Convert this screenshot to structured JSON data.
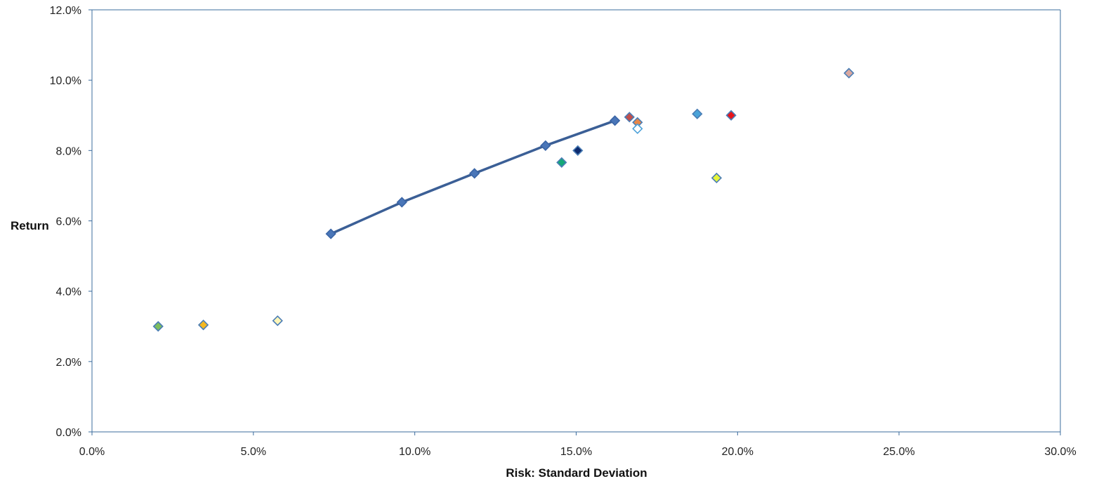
{
  "chart_data": {
    "type": "scatter",
    "title": "",
    "xlabel": "Risk: Standard Deviation",
    "ylabel": "Return",
    "xlim": [
      0,
      30
    ],
    "ylim": [
      0,
      12
    ],
    "x_ticks": [
      "0.0%",
      "5.0%",
      "10.0%",
      "15.0%",
      "20.0%",
      "25.0%",
      "30.0%"
    ],
    "y_ticks": [
      "0.0%",
      "2.0%",
      "4.0%",
      "6.0%",
      "8.0%",
      "10.0%",
      "12.0%"
    ],
    "grid": false,
    "legend": "none",
    "line_series": {
      "color": "#3b5f96",
      "marker_color": "#4a76b8",
      "points": [
        {
          "x": 7.4,
          "y": 5.63
        },
        {
          "x": 9.6,
          "y": 6.53
        },
        {
          "x": 11.85,
          "y": 7.35
        },
        {
          "x": 14.05,
          "y": 8.14
        },
        {
          "x": 16.2,
          "y": 8.85
        }
      ]
    },
    "scatter_points": [
      {
        "x": 2.05,
        "y": 3.0,
        "fill": "#7dbd5f",
        "stroke": "#4a7db5"
      },
      {
        "x": 3.45,
        "y": 3.04,
        "fill": "#f5b820",
        "stroke": "#4a7db5"
      },
      {
        "x": 5.75,
        "y": 3.16,
        "fill": "#fff6b8",
        "stroke": "#4a7db5"
      },
      {
        "x": 14.55,
        "y": 7.66,
        "fill": "#14a878",
        "stroke": "#4a7db5"
      },
      {
        "x": 15.05,
        "y": 8.0,
        "fill": "#0d2a6e",
        "stroke": "#4a7db5"
      },
      {
        "x": 16.65,
        "y": 8.95,
        "fill": "#c0504d",
        "stroke": "#4a7db5"
      },
      {
        "x": 16.9,
        "y": 8.8,
        "fill": "#e8884a",
        "stroke": "#4a7db5"
      },
      {
        "x": 16.9,
        "y": 8.62,
        "fill": "#ffffff",
        "stroke": "#4aa0d8"
      },
      {
        "x": 18.75,
        "y": 9.04,
        "fill": "#4aa3d8",
        "stroke": "#4a7db5"
      },
      {
        "x": 19.35,
        "y": 7.22,
        "fill": "#e6f53a",
        "stroke": "#4a7db5"
      },
      {
        "x": 19.8,
        "y": 9.0,
        "fill": "#e8151b",
        "stroke": "#4a7db5"
      },
      {
        "x": 23.45,
        "y": 10.2,
        "fill": "#d9a8a0",
        "stroke": "#4a7db5"
      }
    ]
  }
}
